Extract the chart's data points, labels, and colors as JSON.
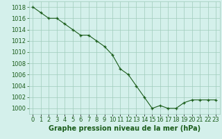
{
  "x": [
    0,
    1,
    2,
    3,
    4,
    5,
    6,
    7,
    8,
    9,
    10,
    11,
    12,
    13,
    14,
    15,
    16,
    17,
    18,
    19,
    20,
    21,
    22,
    23
  ],
  "y": [
    1018,
    1017,
    1016,
    1016,
    1015,
    1014,
    1013,
    1013,
    1012,
    1011,
    1009.5,
    1007,
    1006,
    1004,
    1002,
    1000,
    1000.5,
    1000,
    1000,
    1001,
    1001.5,
    1001.5,
    1001.5,
    1001.5
  ],
  "line_color": "#1a5c1a",
  "marker_color": "#1a5c1a",
  "bg_color": "#d4f0eb",
  "grid_color": "#a0ccbb",
  "xlabel": "Graphe pression niveau de la mer (hPa)",
  "xlabel_color": "#1a5c1a",
  "ylabel_ticks": [
    1000,
    1002,
    1004,
    1006,
    1008,
    1010,
    1012,
    1014,
    1016,
    1018
  ],
  "xlim": [
    -0.5,
    23.5
  ],
  "ylim": [
    999,
    1019
  ],
  "tick_fontsize": 6,
  "xlabel_fontsize": 7
}
